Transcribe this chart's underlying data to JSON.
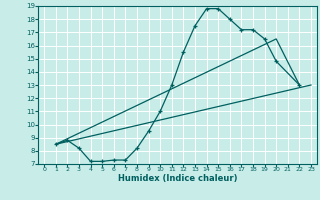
{
  "xlabel": "Humidex (Indice chaleur)",
  "bg_color": "#c8ece8",
  "grid_color": "#ffffff",
  "line_color": "#006060",
  "xlim": [
    -0.5,
    23.5
  ],
  "ylim": [
    7,
    19
  ],
  "xticks": [
    0,
    1,
    2,
    3,
    4,
    5,
    6,
    7,
    8,
    9,
    10,
    11,
    12,
    13,
    14,
    15,
    16,
    17,
    18,
    19,
    20,
    21,
    22,
    23
  ],
  "yticks": [
    7,
    8,
    9,
    10,
    11,
    12,
    13,
    14,
    15,
    16,
    17,
    18,
    19
  ],
  "line1_x": [
    1,
    2,
    3,
    4,
    5,
    6,
    7,
    8,
    9,
    10,
    11,
    12,
    13,
    14,
    15,
    16,
    17,
    18,
    19,
    20,
    22
  ],
  "line1_y": [
    8.5,
    8.8,
    8.2,
    7.2,
    7.2,
    7.3,
    7.3,
    8.2,
    9.5,
    11.0,
    13.0,
    15.5,
    17.5,
    18.8,
    18.8,
    18.0,
    17.2,
    17.2,
    16.5,
    14.8,
    13.0
  ],
  "line2_x": [
    1,
    23
  ],
  "line2_y": [
    8.5,
    13.0
  ],
  "line3_x": [
    1,
    20,
    22
  ],
  "line3_y": [
    8.5,
    16.5,
    13.0
  ]
}
